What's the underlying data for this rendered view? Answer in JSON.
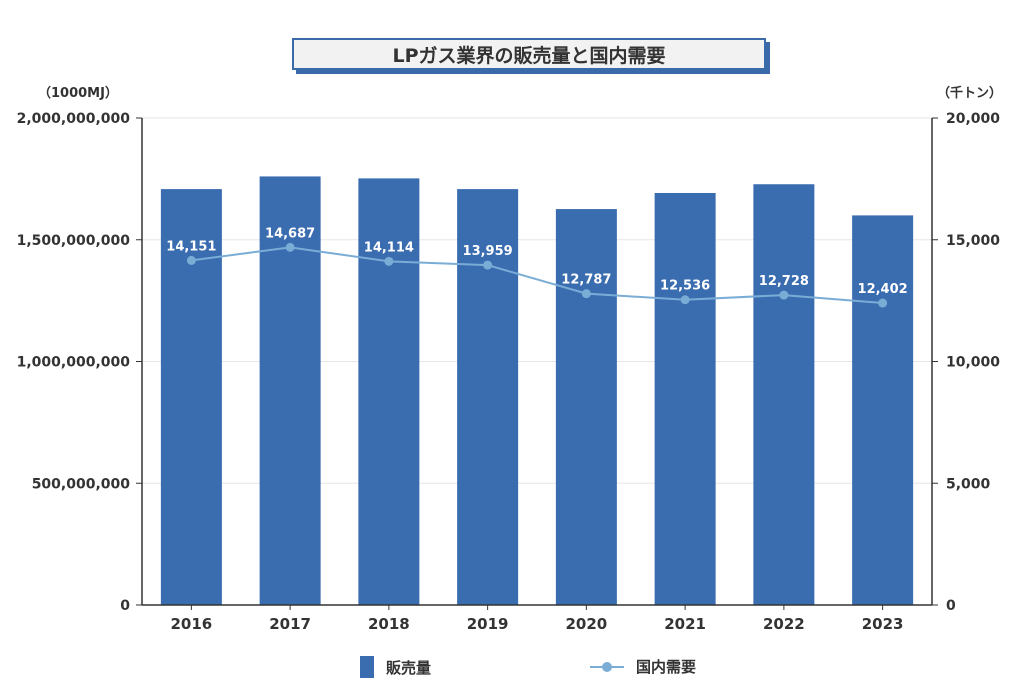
{
  "title": "LPガス業界の販売量と国内需要",
  "left_unit": "（1000MJ）",
  "right_unit": "（千トン）",
  "colors": {
    "bar": "#3a6cb0",
    "line": "#7aadd6",
    "axis": "#333333",
    "grid": "#e6e6e6"
  },
  "legend": {
    "bar_label": "販売量",
    "line_label": "国内需要"
  },
  "chart_data": {
    "type": "bar",
    "categories": [
      "2016",
      "2017",
      "2018",
      "2019",
      "2020",
      "2021",
      "2022",
      "2023"
    ],
    "series": [
      {
        "name": "販売量",
        "type": "bar",
        "axis": "left",
        "values": [
          1708000000,
          1760000000,
          1752000000,
          1708000000,
          1626000000,
          1692000000,
          1728000000,
          1600000000
        ]
      },
      {
        "name": "国内需要",
        "type": "line",
        "axis": "right",
        "values": [
          14151,
          14687,
          14114,
          13959,
          12787,
          12536,
          12728,
          12402
        ],
        "labels": [
          "14,151",
          "14,687",
          "14,114",
          "13,959",
          "12,787",
          "12,536",
          "12,728",
          "12,402"
        ]
      }
    ],
    "y_left": {
      "range": [
        0,
        2000000000
      ],
      "ticks": [
        "0",
        "500,000,000",
        "1,000,000,000",
        "1,500,000,000",
        "2,000,000,000"
      ]
    },
    "y_right": {
      "range": [
        0,
        20000
      ],
      "ticks": [
        "0",
        "5,000",
        "10,000",
        "15,000",
        "20,000"
      ]
    },
    "grid": true,
    "legend_position": "bottom"
  }
}
